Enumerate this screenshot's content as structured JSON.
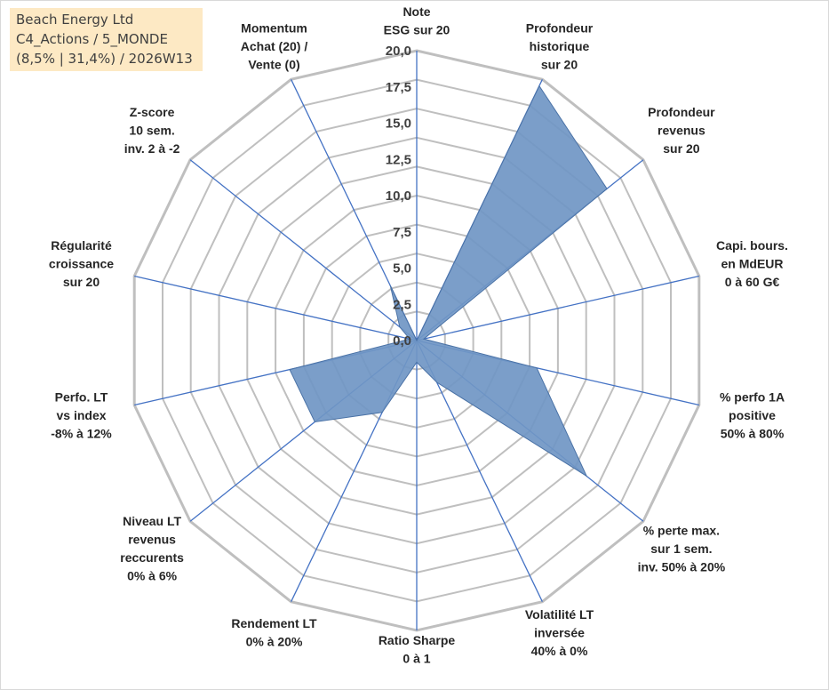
{
  "info_box": {
    "line1": "Beach Energy Ltd",
    "line2": "C4_Actions / 5_MONDE",
    "line3": "(8,5% | 31,4%) / 2026W13"
  },
  "colors": {
    "fill": "#7096c4",
    "stroke": "#4a72a6",
    "spoke": "#4472c4",
    "grid": "#bfbfbf",
    "info_bg": "#fde9c4"
  },
  "chart_data": {
    "type": "radar",
    "title": "",
    "rmax": 20,
    "ticks": [
      "0,0",
      "2,5",
      "5,0",
      "7,5",
      "10,0",
      "12,5",
      "15,0",
      "17,5",
      "20,0"
    ],
    "grid_rings": 10,
    "axes": [
      {
        "label": [
          "Note",
          "ESG sur 20"
        ],
        "value": 0
      },
      {
        "label": [
          "Profondeur",
          "historique",
          "sur 20"
        ],
        "value": 19.5
      },
      {
        "label": [
          "Profondeur",
          "revenus",
          "sur 20"
        ],
        "value": 16.8
      },
      {
        "label": [
          "Capi. bours.",
          "en MdEUR",
          "0 à 60 G€"
        ],
        "value": 0.5
      },
      {
        "label": [
          "% perfo 1A",
          "positive",
          "50% à 80%"
        ],
        "value": 8.5
      },
      {
        "label": [
          "% perte max.",
          "sur 1 sem.",
          "inv. 50% à 20%"
        ],
        "value": 15
      },
      {
        "label": [
          "Volatilité LT",
          "inversée",
          "40% à 0%"
        ],
        "value": 3.2
      },
      {
        "label": [
          "Ratio Sharpe",
          "0 à 1"
        ],
        "value": 1.5
      },
      {
        "label": [
          "Rendement LT",
          "0% à 20%"
        ],
        "value": 5.5
      },
      {
        "label": [
          "Niveau LT",
          "revenus",
          "reccurents",
          "0% à 6%"
        ],
        "value": 9
      },
      {
        "label": [
          "Perfo. LT",
          "vs index",
          "-8% à 12%"
        ],
        "value": 9
      },
      {
        "label": [
          "Régularité",
          "croissance",
          "sur 20"
        ],
        "value": 0.5
      },
      {
        "label": [
          "Z-score",
          "10 sem.",
          "inv. 2 à -2"
        ],
        "value": 1.5
      },
      {
        "label": [
          "Momentum",
          "Achat (20) /",
          "Vente (0)"
        ],
        "value": 4.2
      }
    ]
  }
}
